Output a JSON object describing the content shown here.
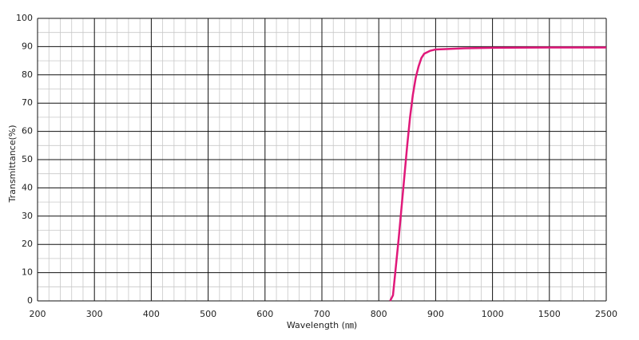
{
  "chart_data": {
    "type": "line",
    "xlabel": "Wavelength (㎚)",
    "ylabel": "Transmittance(%)",
    "x": [
      820,
      825,
      830,
      835,
      840,
      845,
      850,
      855,
      860,
      865,
      870,
      875,
      880,
      890,
      900,
      950,
      1000,
      1500,
      2500
    ],
    "series": [
      {
        "name": "Transmittance",
        "color": "#e0197a",
        "values": [
          0,
          2,
          12,
          22,
          33,
          44,
          55,
          65,
          73,
          79,
          83,
          86,
          87.5,
          88.5,
          89,
          89.4,
          89.6,
          89.7,
          89.7
        ]
      }
    ],
    "xlim": [
      200,
      2500
    ],
    "xticks": [
      200,
      300,
      400,
      500,
      600,
      700,
      800,
      900,
      1000,
      1500,
      2500
    ],
    "ylim": [
      0,
      100
    ],
    "yticks": [
      0,
      10,
      20,
      30,
      40,
      50,
      60,
      70,
      80,
      90,
      100
    ],
    "grid": true
  }
}
